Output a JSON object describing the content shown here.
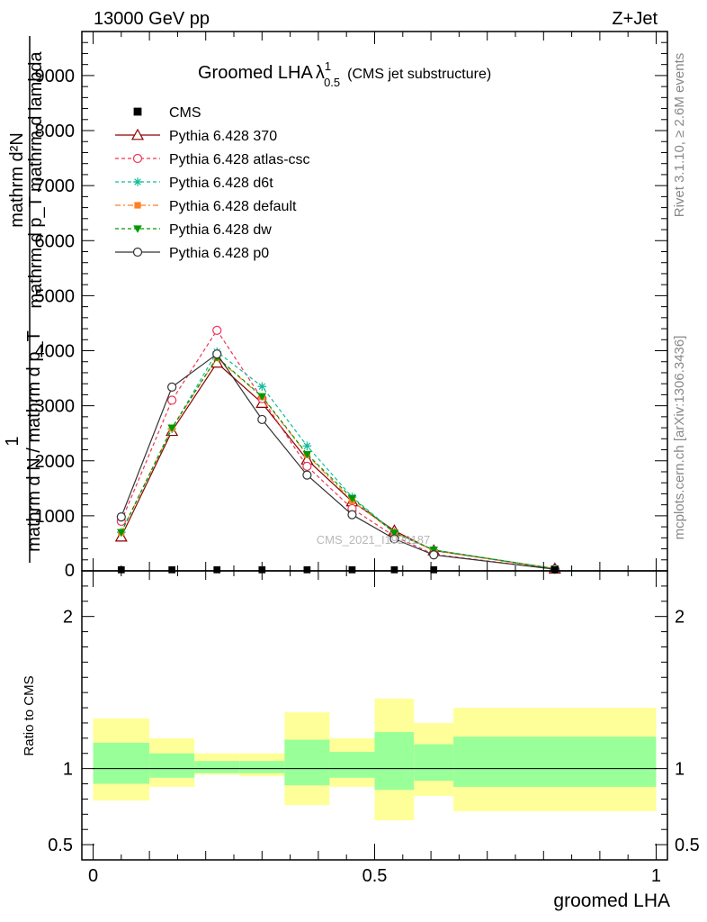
{
  "header": {
    "energy_label": "13000 GeV pp",
    "process_label": "Z+Jet",
    "title_prefix": "Groomed LHA",
    "title_symbol": "λ",
    "title_sup": "1",
    "title_sub": "0.5",
    "title_suffix": "(CMS jet substructure)",
    "rivet_label": "Rivet 3.1.10, ≥ 2.6M events",
    "mcplots_label": "mcplots.cern.ch [arXiv:1306.3436]",
    "watermark": "CMS_2021_I1920187"
  },
  "main_ylabel": {
    "num_top": "mathrm d²N",
    "den_top": "mathrm d p_T mathrm d lambda",
    "num_bottom": "1",
    "den_bottom": "mathrm d N / mathrm d p_T"
  },
  "ratio_ylabel": "Ratio to CMS",
  "xlabel": "groomed LHA",
  "colors": {
    "cms": "#000000",
    "p370": "#8b0000",
    "atlas_csc": "#ee3355",
    "d6t": "#11bb99",
    "default": "#ff7f22",
    "dw": "#009900",
    "p0": "#333333",
    "band_outer": "#ffff99",
    "band_inner": "#99ff99"
  },
  "chart_data": [
    {
      "type": "line",
      "title": "Groomed LHA λ¹₀.₅ (CMS jet substructure)",
      "xlabel": "",
      "ylabel": "",
      "xlim": [
        -0.02,
        1.02
      ],
      "ylim": [
        0,
        9800
      ],
      "yticks": [
        1000,
        2000,
        3000,
        4000,
        5000,
        6000,
        7000,
        8000,
        9000
      ],
      "ytick_labels": [
        "1000",
        "2000",
        "3000",
        "4000",
        "5000",
        "6000",
        "7000",
        "8000",
        "9000"
      ],
      "legend_position": "top-left",
      "series": [
        {
          "name": "CMS",
          "style": "cms",
          "x": [
            0.05,
            0.14,
            0.22,
            0.3,
            0.38,
            0.46,
            0.535,
            0.605,
            0.82
          ],
          "y": [
            3,
            3,
            3,
            3,
            3,
            3,
            3,
            3,
            3
          ]
        },
        {
          "name": "Pythia 6.428 370",
          "style": "p370",
          "x": [
            0.05,
            0.14,
            0.22,
            0.3,
            0.38,
            0.46,
            0.535,
            0.605,
            0.82
          ],
          "y": [
            620,
            2540,
            3780,
            3050,
            2020,
            1260,
            730,
            370,
            40
          ]
        },
        {
          "name": "Pythia 6.428 atlas-csc",
          "style": "atlas_csc",
          "x": [
            0.05,
            0.14,
            0.22,
            0.3,
            0.38,
            0.46,
            0.535,
            0.605,
            0.82
          ],
          "y": [
            900,
            3100,
            4370,
            3130,
            1900,
            1130,
            630,
            300,
            30
          ]
        },
        {
          "name": "Pythia 6.428 d6t",
          "style": "d6t",
          "x": [
            0.05,
            0.14,
            0.22,
            0.3,
            0.38,
            0.46,
            0.535,
            0.605,
            0.82
          ],
          "y": [
            700,
            2580,
            3980,
            3350,
            2270,
            1340,
            700,
            380,
            40
          ]
        },
        {
          "name": "Pythia 6.428 default",
          "style": "default",
          "x": [
            0.05,
            0.14,
            0.22,
            0.3,
            0.38,
            0.46,
            0.535,
            0.605,
            0.82
          ],
          "y": [
            700,
            2590,
            3870,
            3160,
            2110,
            1270,
            700,
            370,
            40
          ]
        },
        {
          "name": "Pythia 6.428 dw",
          "style": "dw",
          "x": [
            0.05,
            0.14,
            0.22,
            0.3,
            0.38,
            0.46,
            0.535,
            0.605,
            0.82
          ],
          "y": [
            700,
            2600,
            3880,
            3170,
            2120,
            1320,
            690,
            380,
            40
          ]
        },
        {
          "name": "Pythia 6.428 p0",
          "style": "p0",
          "x": [
            0.05,
            0.14,
            0.22,
            0.3,
            0.38,
            0.46,
            0.535,
            0.605,
            0.82
          ],
          "y": [
            980,
            3340,
            3940,
            2750,
            1740,
            1020,
            580,
            290,
            30
          ]
        }
      ]
    },
    {
      "type": "area",
      "title": "",
      "xlabel": "groomed LHA",
      "ylabel": "Ratio to CMS",
      "xlim": [
        -0.02,
        1.02
      ],
      "ylim": [
        0.4,
        2.3
      ],
      "yticks": [
        0.5,
        1,
        2
      ],
      "ytick_labels": [
        "0.5",
        "1",
        "2"
      ],
      "xticks": [
        0,
        0.5,
        1
      ],
      "xtick_labels": [
        "0",
        "0.5",
        "1"
      ],
      "reference_line": 1,
      "bins": [
        {
          "x_low": 0.0,
          "x_high": 0.1,
          "outer": [
            0.79,
            1.33
          ],
          "inner": [
            0.9,
            1.17
          ]
        },
        {
          "x_low": 0.1,
          "x_high": 0.18,
          "outer": [
            0.88,
            1.2
          ],
          "inner": [
            0.94,
            1.1
          ]
        },
        {
          "x_low": 0.18,
          "x_high": 0.26,
          "outer": [
            0.96,
            1.1
          ],
          "inner": [
            0.97,
            1.05
          ]
        },
        {
          "x_low": 0.26,
          "x_high": 0.34,
          "outer": [
            0.95,
            1.1
          ],
          "inner": [
            0.97,
            1.05
          ]
        },
        {
          "x_low": 0.34,
          "x_high": 0.42,
          "outer": [
            0.76,
            1.37
          ],
          "inner": [
            0.89,
            1.19
          ]
        },
        {
          "x_low": 0.42,
          "x_high": 0.5,
          "outer": [
            0.88,
            1.2
          ],
          "inner": [
            0.94,
            1.11
          ]
        },
        {
          "x_low": 0.5,
          "x_high": 0.57,
          "outer": [
            0.66,
            1.46
          ],
          "inner": [
            0.86,
            1.24
          ]
        },
        {
          "x_low": 0.57,
          "x_high": 0.64,
          "outer": [
            0.82,
            1.3
          ],
          "inner": [
            0.92,
            1.16
          ]
        },
        {
          "x_low": 0.64,
          "x_high": 1.0,
          "outer": [
            0.72,
            1.4
          ],
          "inner": [
            0.88,
            1.21
          ]
        }
      ]
    }
  ]
}
